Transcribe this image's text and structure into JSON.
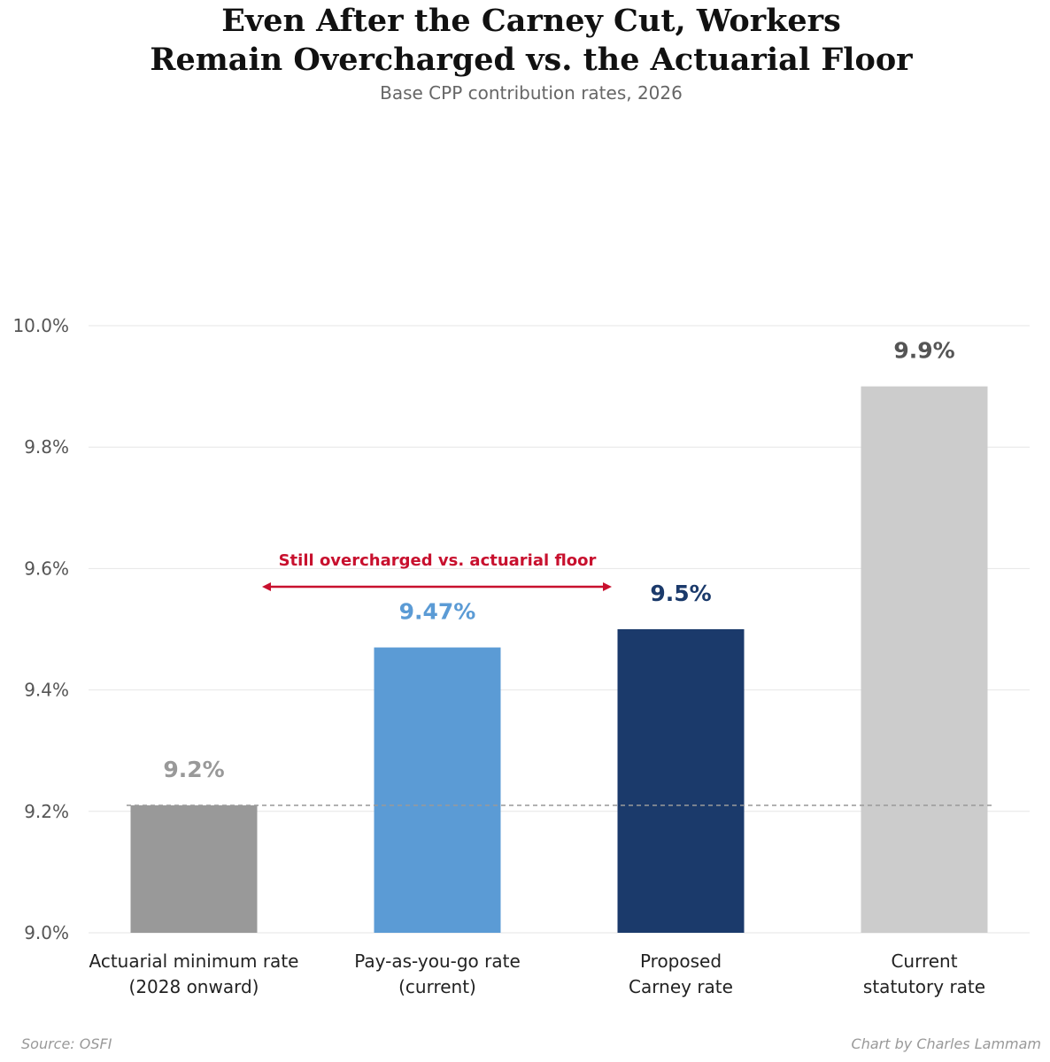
{
  "header": {
    "title": "Even After the Carney Cut, Workers\nRemain Overcharged vs. the Actuarial Floor",
    "subtitle": "Base CPP contribution rates, 2026"
  },
  "footer": {
    "source": "Source: OSFI",
    "credit": "Chart by Charles Lammam"
  },
  "colors": {
    "annotation": "#c8102e",
    "grid": "#e6e6e6",
    "reference_line": "#999999"
  },
  "chart_data": {
    "type": "bar",
    "title": "Even After the Carney Cut, Workers Remain Overcharged vs. the Actuarial Floor",
    "subtitle": "Base CPP contribution rates, 2026",
    "categories": [
      [
        "Actuarial minimum rate",
        "(2028 onward)"
      ],
      [
        "Pay-as-you-go rate",
        "(current)"
      ],
      [
        "Proposed",
        "Carney rate"
      ],
      [
        "Current",
        "statutory rate"
      ]
    ],
    "values": [
      9.21,
      9.47,
      9.5,
      9.9
    ],
    "value_labels": [
      "9.2%",
      "9.47%",
      "9.5%",
      "9.9%"
    ],
    "bar_colors": [
      "#999999",
      "#5b9bd5",
      "#1b3a6b",
      "#cccccc"
    ],
    "label_colors": [
      "#999999",
      "#5b9bd5",
      "#1b3a6b",
      "#555555"
    ],
    "ylim": [
      9.0,
      10.0
    ],
    "yticks": [
      9.0,
      9.2,
      9.4,
      9.6,
      9.8,
      10.0
    ],
    "ytick_labels": [
      "9.0%",
      "9.2%",
      "9.4%",
      "9.6%",
      "9.8%",
      "10.0%"
    ],
    "grid": "horizontal",
    "reference_line": {
      "value": 9.21,
      "style": "dashed"
    },
    "annotation": {
      "text": "Still overcharged vs. actuarial floor",
      "arrow": "double-headed",
      "y": 9.57,
      "from_category": 0,
      "to_category": 2
    }
  }
}
